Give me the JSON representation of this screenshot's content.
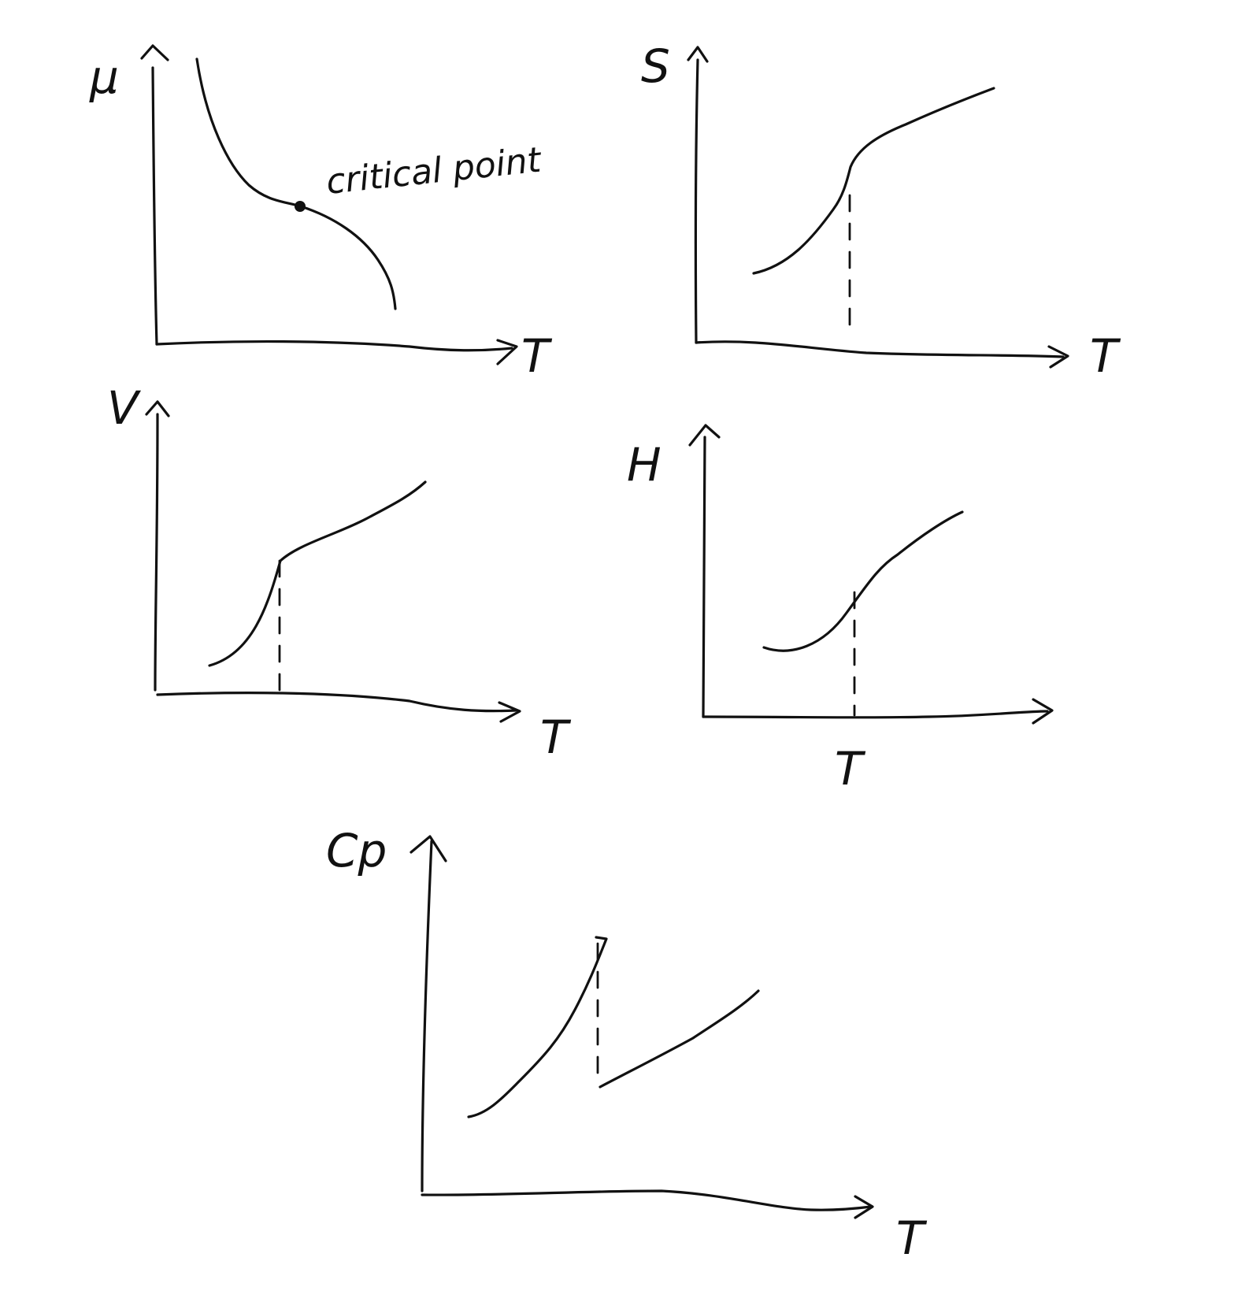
{
  "panels": {
    "mu": {
      "ylabel": "μ",
      "xlabel": "T",
      "annotation": "critical point"
    },
    "s": {
      "ylabel": "S",
      "xlabel": "T"
    },
    "v": {
      "ylabel": "V",
      "xlabel": "T"
    },
    "h": {
      "ylabel": "H",
      "xlabel": "T"
    },
    "cp": {
      "ylabel": "Cp",
      "xlabel": "T"
    }
  }
}
